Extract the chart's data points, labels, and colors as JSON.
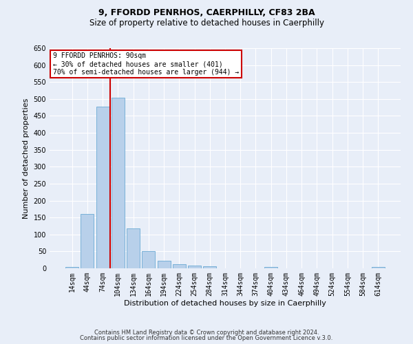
{
  "title": "9, FFORDD PENRHOS, CAERPHILLY, CF83 2BA",
  "subtitle": "Size of property relative to detached houses in Caerphilly",
  "xlabel": "Distribution of detached houses by size in Caerphilly",
  "ylabel": "Number of detached properties",
  "categories": [
    "14sqm",
    "44sqm",
    "74sqm",
    "104sqm",
    "134sqm",
    "164sqm",
    "194sqm",
    "224sqm",
    "254sqm",
    "284sqm",
    "314sqm",
    "344sqm",
    "374sqm",
    "404sqm",
    "434sqm",
    "464sqm",
    "494sqm",
    "524sqm",
    "554sqm",
    "584sqm",
    "614sqm"
  ],
  "values": [
    5,
    160,
    478,
    503,
    118,
    50,
    23,
    12,
    8,
    6,
    0,
    0,
    0,
    5,
    0,
    0,
    0,
    0,
    0,
    0,
    5
  ],
  "bar_color": "#b8d0ea",
  "bar_edge_color": "#6aaad4",
  "bar_width": 0.85,
  "ylim": [
    0,
    650
  ],
  "yticks": [
    0,
    50,
    100,
    150,
    200,
    250,
    300,
    350,
    400,
    450,
    500,
    550,
    600,
    650
  ],
  "vline_x": 2.5,
  "vline_color": "#cc0000",
  "annotation_title": "9 FFORDD PENRHOS: 90sqm",
  "annotation_line1": "← 30% of detached houses are smaller (401)",
  "annotation_line2": "70% of semi-detached houses are larger (944) →",
  "annotation_box_color": "#ffffff",
  "annotation_box_edgecolor": "#cc0000",
  "footer1": "Contains HM Land Registry data © Crown copyright and database right 2024.",
  "footer2": "Contains public sector information licensed under the Open Government Licence v.3.0.",
  "background_color": "#e8eef8",
  "title_fontsize": 9,
  "subtitle_fontsize": 8.5,
  "tick_fontsize": 7,
  "label_fontsize": 8,
  "footer_fontsize": 6
}
